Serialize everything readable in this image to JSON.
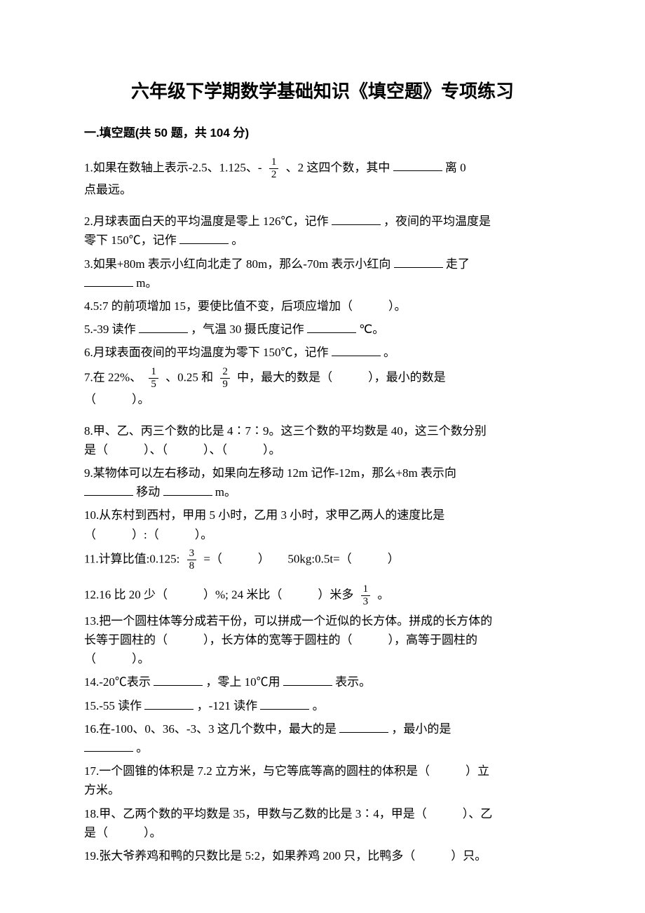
{
  "title": "六年级下学期数学基础知识《填空题》专项练习",
  "section": "一.填空题(共 50 题，共 104 分)",
  "q1a": "1.如果在数轴上表示-2.5、1.125、-",
  "q1_frac_num": "1",
  "q1_frac_den": "2",
  "q1b": "、2 这四个数，其中",
  "q1c": "离 0",
  "q1d": "点最远。",
  "q2a": "2.月球表面白天的平均温度是零上 126℃，记作",
  "q2b": "，夜间的平均温度是",
  "q2c": "零下 150℃，记作",
  "q2d": "。",
  "q3a": "3.如果+80m 表示小红向北走了 80m，那么-70m 表示小红向",
  "q3b": "走了",
  "q3c": "m。",
  "q4": "4.5:7 的前项增加 15，要使比值不变，后项应增加（　　　）。",
  "q5a": "5.-39 读作",
  "q5b": "，气温 30 摄氏度记作",
  "q5c": "℃。",
  "q6a": "6.月球表面夜间的平均温度为零下 150℃，记作",
  "q6b": "。",
  "q7a": "7.在 22%、",
  "q7_f1_num": "1",
  "q7_f1_den": "5",
  "q7b": "、0.25 和",
  "q7_f2_num": "2",
  "q7_f2_den": "9",
  "q7c": "中，最大的数是（　　　），最小的数是",
  "q7d": "（　　　）。",
  "q8a": "8.甲、乙、丙三个数的比是 4∶7∶9。这三个数的平均数是 40，这三个数分别",
  "q8b": "是（　　　）、（　　　）、（　　　）。",
  "q9a": "9.某物体可以左右移动，如果向左移动 12m 记作-12m，那么+8m 表示向",
  "q9b": "移动",
  "q9c": "m。",
  "q10a": "10.从东村到西村，甲用 5 小时，乙用 3 小时，求甲乙两人的速度比是",
  "q10b": "（　　　）:（　　　）。",
  "q11a": "11.计算比值:0.125:",
  "q11_frac_num": "3",
  "q11_frac_den": "8",
  "q11b": "=（　　　）　　50kg:0.5t=（　　　）",
  "q12a": "12.16 比 20 少（　　　）%; 24 米比（　　　）米多",
  "q12_frac_num": "1",
  "q12_frac_den": "3",
  "q12b": "。",
  "q13a": "13.把一个圆柱体等分成若干份，可以拼成一个近似的长方体。拼成的长方体的",
  "q13b": "长等于圆柱的（　　　），长方体的宽等于圆柱的（　　　），高等于圆柱的",
  "q13c": "（　　　）。",
  "q14a": "14.-20℃表示",
  "q14b": "，零上 10℃用",
  "q14c": "表示。",
  "q15a": "15.-55 读作",
  "q15b": "，-121 读作",
  "q15c": "。",
  "q16a": "16.在-100、0、36、-3、3 这几个数中，最大的是",
  "q16b": "，最小的是",
  "q16c": "。",
  "q17a": "17.一个圆锥的体积是 7.2 立方米，与它等底等高的圆柱的体积是（　　　）立",
  "q17b": "方米。",
  "q18a": "18.甲、乙两个数的平均数是 35，甲数与乙数的比是 3∶4，甲是（　　　）、乙",
  "q18b": "是（　　　）。",
  "q19": "19.张大爷养鸡和鸭的只数比是 5:2，如果养鸡 200 只，比鸭多（　　　）只。"
}
